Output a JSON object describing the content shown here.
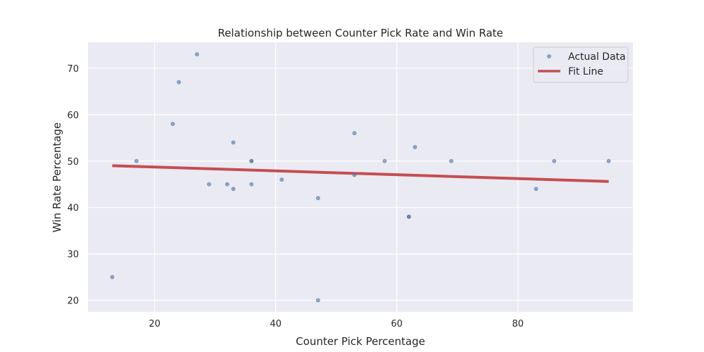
{
  "chart_data": {
    "type": "scatter",
    "title": "Relationship between Counter Pick Rate and Win Rate",
    "xlabel": "Counter Pick Percentage",
    "ylabel": "Win Rate Percentage",
    "xlim": [
      9,
      99
    ],
    "ylim": [
      17.5,
      75.6
    ],
    "xticks": [
      20,
      40,
      60,
      80
    ],
    "yticks": [
      20,
      30,
      40,
      50,
      60,
      70
    ],
    "grid": true,
    "legend_position": "top-right",
    "series": [
      {
        "name": "Actual Data",
        "kind": "points",
        "color": "#4c72b0",
        "x": [
          13,
          17,
          23,
          24,
          27,
          29,
          32,
          33,
          33,
          36,
          36,
          36,
          41,
          47,
          47,
          53,
          53,
          58,
          62,
          62,
          63,
          69,
          83,
          86,
          95
        ],
        "y": [
          25,
          50,
          58,
          67,
          73,
          45,
          45,
          54,
          44,
          50,
          50,
          45,
          46,
          42,
          20,
          56,
          47,
          50,
          38,
          38,
          53,
          50,
          44,
          50,
          50
        ]
      },
      {
        "name": "Fit Line",
        "kind": "line",
        "color": "#c44e52",
        "x": [
          13,
          95
        ],
        "y": [
          49.0,
          45.6
        ]
      }
    ]
  }
}
